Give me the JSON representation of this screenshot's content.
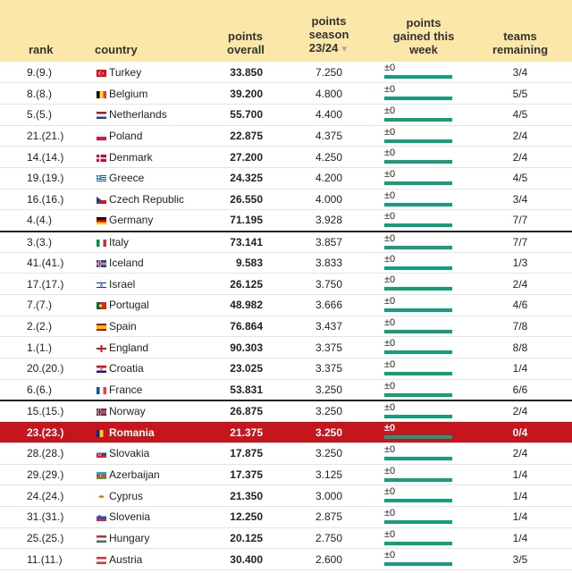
{
  "headers": {
    "rank": "rank",
    "country": "country",
    "overall_1": "points",
    "overall_2": "overall",
    "season_1": "points",
    "season_2": "season",
    "season_3": "23/24",
    "gained_1": "points",
    "gained_2": "gained this",
    "gained_3": "week",
    "teams_1": "teams",
    "teams_2": "remaining"
  },
  "colors": {
    "header_bg": "#fbe8a8",
    "highlight_row": "#c4161c",
    "gain_bar": "#139f7a"
  },
  "rows": [
    {
      "rank": "9.(9.)",
      "country": "Turkey",
      "flag": "flag-turkey-icon",
      "overall": "33.850",
      "season": "7.250",
      "gained": "±0",
      "teams": "3/4"
    },
    {
      "rank": "8.(8.)",
      "country": "Belgium",
      "flag": "flag-belgium-icon",
      "overall": "39.200",
      "season": "4.800",
      "gained": "±0",
      "teams": "5/5"
    },
    {
      "rank": "5.(5.)",
      "country": "Netherlands",
      "flag": "flag-netherlands-icon",
      "overall": "55.700",
      "season": "4.400",
      "gained": "±0",
      "teams": "4/5"
    },
    {
      "rank": "21.(21.)",
      "country": "Poland",
      "flag": "flag-poland-icon",
      "overall": "22.875",
      "season": "4.375",
      "gained": "±0",
      "teams": "2/4"
    },
    {
      "rank": "14.(14.)",
      "country": "Denmark",
      "flag": "flag-denmark-icon",
      "overall": "27.200",
      "season": "4.250",
      "gained": "±0",
      "teams": "2/4"
    },
    {
      "rank": "19.(19.)",
      "country": "Greece",
      "flag": "flag-greece-icon",
      "overall": "24.325",
      "season": "4.200",
      "gained": "±0",
      "teams": "4/5"
    },
    {
      "rank": "16.(16.)",
      "country": "Czech Republic",
      "flag": "flag-czech-icon",
      "overall": "26.550",
      "season": "4.000",
      "gained": "±0",
      "teams": "3/4"
    },
    {
      "rank": "4.(4.)",
      "country": "Germany",
      "flag": "flag-germany-icon",
      "overall": "71.195",
      "season": "3.928",
      "gained": "±0",
      "teams": "7/7"
    },
    {
      "rank": "3.(3.)",
      "country": "Italy",
      "flag": "flag-italy-icon",
      "overall": "73.141",
      "season": "3.857",
      "gained": "±0",
      "teams": "7/7"
    },
    {
      "rank": "41.(41.)",
      "country": "Iceland",
      "flag": "flag-iceland-icon",
      "overall": "9.583",
      "season": "3.833",
      "gained": "±0",
      "teams": "1/3"
    },
    {
      "rank": "17.(17.)",
      "country": "Israel",
      "flag": "flag-israel-icon",
      "overall": "26.125",
      "season": "3.750",
      "gained": "±0",
      "teams": "2/4"
    },
    {
      "rank": "7.(7.)",
      "country": "Portugal",
      "flag": "flag-portugal-icon",
      "overall": "48.982",
      "season": "3.666",
      "gained": "±0",
      "teams": "4/6"
    },
    {
      "rank": "2.(2.)",
      "country": "Spain",
      "flag": "flag-spain-icon",
      "overall": "76.864",
      "season": "3.437",
      "gained": "±0",
      "teams": "7/8"
    },
    {
      "rank": "1.(1.)",
      "country": "England",
      "flag": "flag-england-icon",
      "overall": "90.303",
      "season": "3.375",
      "gained": "±0",
      "teams": "8/8"
    },
    {
      "rank": "20.(20.)",
      "country": "Croatia",
      "flag": "flag-croatia-icon",
      "overall": "23.025",
      "season": "3.375",
      "gained": "±0",
      "teams": "1/4"
    },
    {
      "rank": "6.(6.)",
      "country": "France",
      "flag": "flag-france-icon",
      "overall": "53.831",
      "season": "3.250",
      "gained": "±0",
      "teams": "6/6"
    },
    {
      "rank": "15.(15.)",
      "country": "Norway",
      "flag": "flag-norway-icon",
      "overall": "26.875",
      "season": "3.250",
      "gained": "±0",
      "teams": "2/4"
    },
    {
      "rank": "23.(23.)",
      "country": "Romania",
      "flag": "flag-romania-icon",
      "overall": "21.375",
      "season": "3.250",
      "gained": "±0",
      "teams": "0/4"
    },
    {
      "rank": "28.(28.)",
      "country": "Slovakia",
      "flag": "flag-slovakia-icon",
      "overall": "17.875",
      "season": "3.250",
      "gained": "±0",
      "teams": "2/4"
    },
    {
      "rank": "29.(29.)",
      "country": "Azerbaijan",
      "flag": "flag-azerbaijan-icon",
      "overall": "17.375",
      "season": "3.125",
      "gained": "±0",
      "teams": "1/4"
    },
    {
      "rank": "24.(24.)",
      "country": "Cyprus",
      "flag": "flag-cyprus-icon",
      "overall": "21.350",
      "season": "3.000",
      "gained": "±0",
      "teams": "1/4"
    },
    {
      "rank": "31.(31.)",
      "country": "Slovenia",
      "flag": "flag-slovenia-icon",
      "overall": "12.250",
      "season": "2.875",
      "gained": "±0",
      "teams": "1/4"
    },
    {
      "rank": "25.(25.)",
      "country": "Hungary",
      "flag": "flag-hungary-icon",
      "overall": "20.125",
      "season": "2.750",
      "gained": "±0",
      "teams": "1/4"
    },
    {
      "rank": "11.(11.)",
      "country": "Austria",
      "flag": "flag-austria-icon",
      "overall": "30.400",
      "season": "2.600",
      "gained": "±0",
      "teams": "3/5"
    }
  ]
}
